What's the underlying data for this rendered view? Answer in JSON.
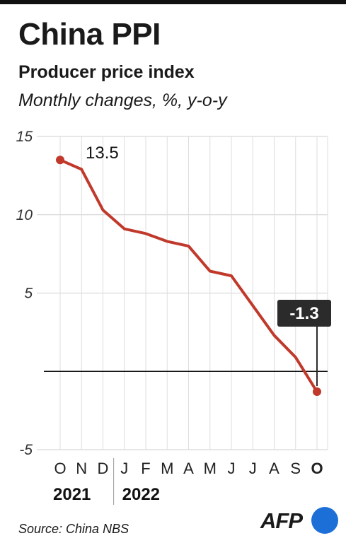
{
  "header": {
    "title": "China PPI",
    "subtitle": "Producer price index",
    "unit": "Monthly changes, %, y-o-y"
  },
  "footer": {
    "source": "Source: China NBS",
    "logo": "AFP"
  },
  "chart_data": {
    "type": "line",
    "title": "China PPI",
    "subtitle": "Producer price index",
    "x": [
      "O",
      "N",
      "D",
      "J",
      "F",
      "M",
      "A",
      "M",
      "J",
      "J",
      "A",
      "S",
      "O"
    ],
    "years": [
      {
        "label": "2021",
        "from": 0,
        "to": 2
      },
      {
        "label": "2022",
        "from": 3,
        "to": 12
      }
    ],
    "series": [
      {
        "values": [
          13.5,
          12.9,
          10.3,
          9.1,
          8.8,
          8.3,
          8.0,
          6.4,
          6.1,
          4.2,
          2.3,
          0.9,
          -1.3
        ],
        "color": "#c0392b"
      }
    ],
    "ylim": [
      -5,
      15
    ],
    "yticks": [
      15,
      10,
      5,
      -5
    ],
    "zero_line": true,
    "grid": true,
    "annotations": [
      {
        "index": 0,
        "text": "13.5",
        "style": "plain"
      },
      {
        "index": 12,
        "text": "-1.3",
        "style": "callout"
      }
    ],
    "highlight_last_tick": true
  }
}
